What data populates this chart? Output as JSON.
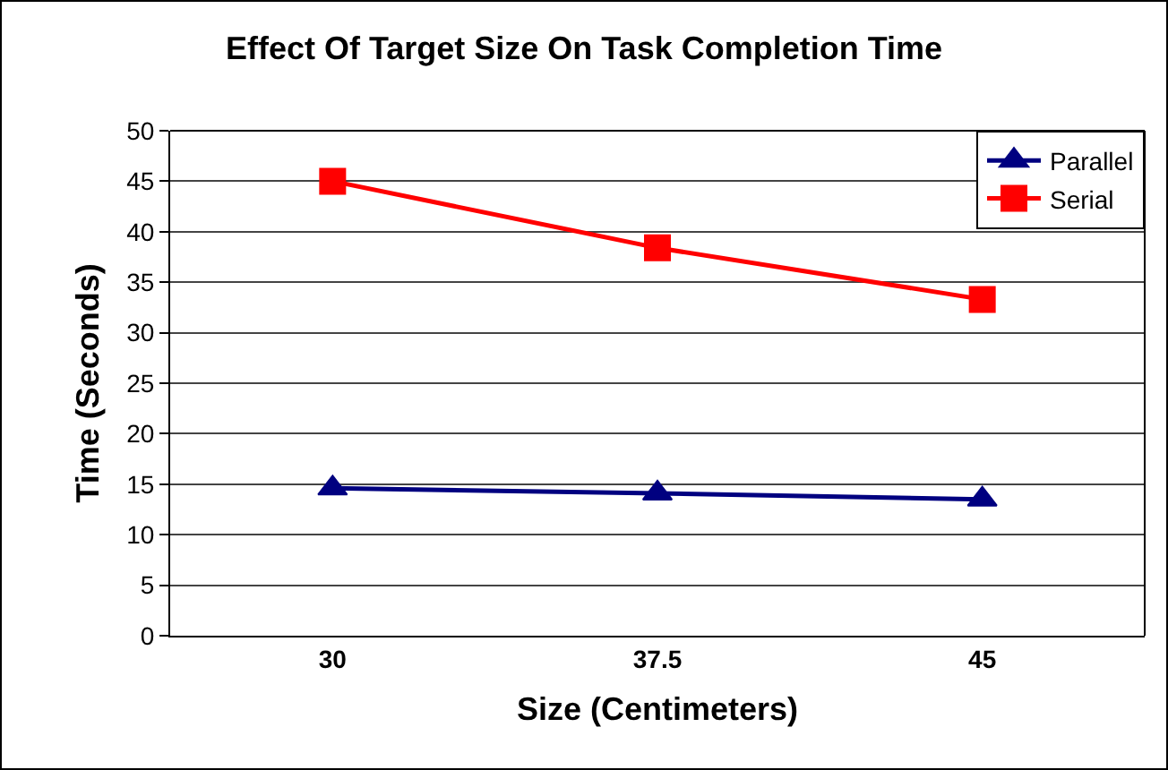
{
  "chart_data": {
    "type": "line",
    "title": "Effect Of Target Size On Task Completion Time",
    "xlabel": "Size (Centimeters)",
    "ylabel": "Time (Seconds)",
    "categories": [
      "30",
      "37.5",
      "45"
    ],
    "series": [
      {
        "name": "Parallel",
        "color": "#000080",
        "marker": "triangle",
        "values": [
          14.6,
          14.1,
          13.5
        ]
      },
      {
        "name": "Serial",
        "color": "#ff0000",
        "marker": "square",
        "values": [
          45.0,
          38.4,
          33.3
        ]
      }
    ],
    "ylim": [
      0,
      50
    ],
    "yticks": [
      0,
      5,
      10,
      15,
      20,
      25,
      30,
      35,
      40,
      45,
      50
    ],
    "grid": "y",
    "legend": "top right",
    "line_style": "solid"
  }
}
